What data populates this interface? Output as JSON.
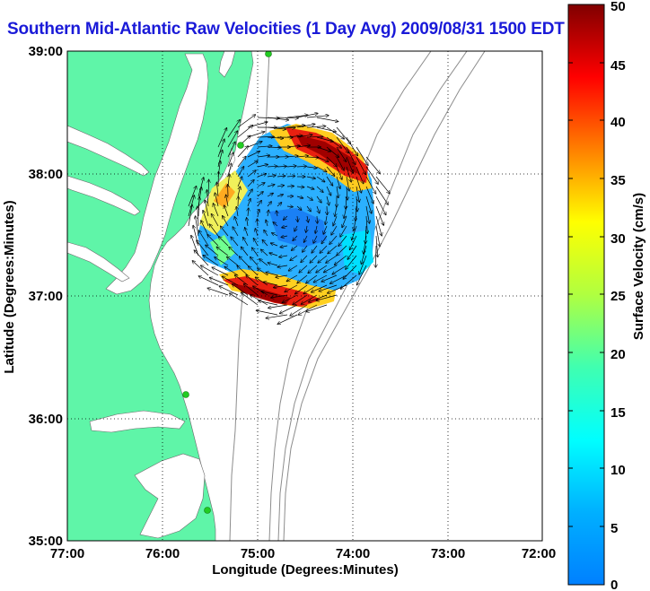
{
  "title": "Southern Mid-Atlantic Raw Velocities (1 Day Avg) 2009/08/31 1500 EDT",
  "map": {
    "xlabel": "Longitude (Degrees:Minutes)",
    "ylabel": "Latitude (Degrees:Minutes)",
    "x_ticks": [
      "77:00",
      "76:00",
      "75:00",
      "74:00",
      "73:00",
      "72:00"
    ],
    "y_ticks": [
      "39:00",
      "38:00",
      "37:00",
      "36:00",
      "35:00"
    ],
    "lon_range": [
      -77,
      -72
    ],
    "lat_range": [
      35,
      39
    ],
    "grid": "dotted",
    "land_color": "#5ff5a8",
    "coastal_water_color": "#ffffff",
    "bathymetry_color": "#8c8c8c",
    "station_color": "#22cc22",
    "stations_icon": "station-dot-icon"
  },
  "colorbar": {
    "label": "Surface Velocity (cm/s)",
    "ticks": [
      "50",
      "45",
      "40",
      "35",
      "30",
      "25",
      "20",
      "15",
      "10",
      "5",
      "0"
    ],
    "range": [
      0,
      50
    ],
    "colormap": "jet"
  }
}
